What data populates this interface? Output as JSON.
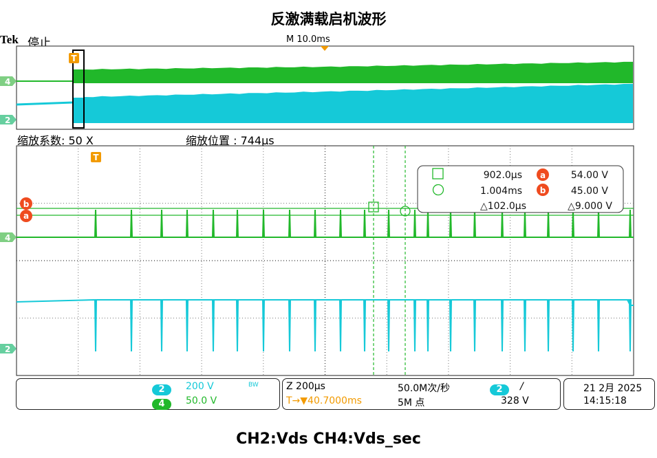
{
  "title": "反激满载启机波形",
  "caption": "CH2:Vds  CH4:Vds_sec",
  "header": {
    "brand": "Tek",
    "status": "停止",
    "horizontal_scale": "M 10.0ms"
  },
  "zoom": {
    "factor_label": "缩放系数: 50 X",
    "position_label": "缩放位置 :  744µs"
  },
  "markers": {
    "trigger": "T",
    "ch4": "4",
    "ch2": "2",
    "cursor_a": "a",
    "cursor_b": "b"
  },
  "measurements": {
    "cursor1_time": "902.0µs",
    "cursor2_time": "1.004ms",
    "delta_time": "△102.0µs",
    "a_value": "54.00 V",
    "b_value": "45.00 V",
    "delta_value": "△9.000 V"
  },
  "channels": {
    "ch2": {
      "num": "2",
      "scale": "200 V",
      "bw": "BW"
    },
    "ch4": {
      "num": "4",
      "scale": "50.0 V"
    }
  },
  "timebase": {
    "zoom_scale": "Z 200µs",
    "sample_rate": "50.0M次/秒",
    "trigger_pos": "T→▼40.7000ms",
    "record_length": "5M 点"
  },
  "trigger": {
    "channel": "2",
    "slope": "/",
    "level": "328 V"
  },
  "datetime": {
    "date": "21 2月 2025",
    "time": "14:15:18"
  },
  "colors": {
    "ch2": "#15c9d8",
    "ch4": "#21b82a",
    "marker": "#f29a00",
    "badge": "#ef4b1f"
  }
}
